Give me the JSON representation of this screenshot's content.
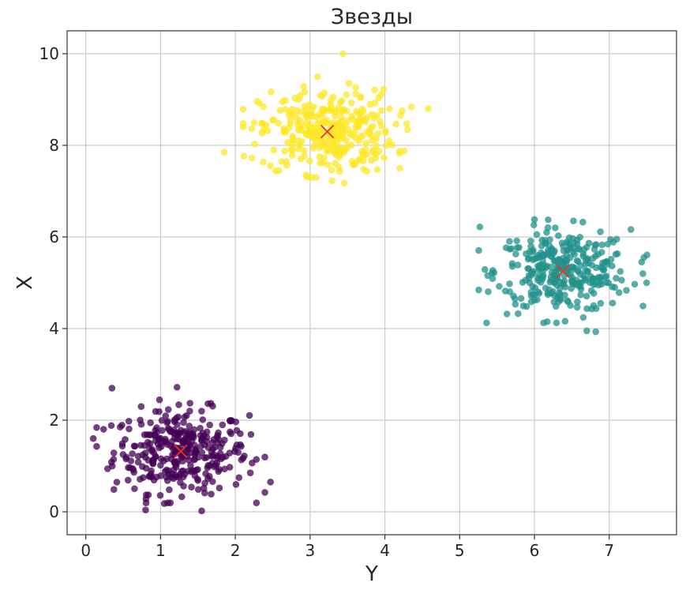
{
  "chart_data": {
    "type": "scatter",
    "title": "Звезды",
    "xlabel": "Y",
    "ylabel": "X",
    "xlim": [
      -0.25,
      7.9
    ],
    "ylim": [
      -0.5,
      10.5
    ],
    "xticks": [
      0,
      1,
      2,
      3,
      4,
      5,
      6,
      7
    ],
    "yticks": [
      0,
      2,
      4,
      6,
      8,
      10
    ],
    "grid": true,
    "legend": "none",
    "colors": {
      "cluster_purple": "#440154",
      "cluster_teal": "#21918c",
      "cluster_yellow": "#fde725",
      "centroid": "#e8312a",
      "grid": "#cccccc",
      "axis": "#333333"
    },
    "clusters": [
      {
        "color_key": "cluster_purple",
        "center": [
          1.27,
          1.32
        ],
        "spread": [
          0.45,
          0.45
        ],
        "n": 330,
        "outliers": [
          [
            0.35,
            2.7
          ],
          [
            1.22,
            2.72
          ],
          [
            2.47,
            0.65
          ],
          [
            1.55,
            0.02
          ],
          [
            0.8,
            0.04
          ],
          [
            1.05,
            0.18
          ],
          [
            0.1,
            1.6
          ],
          [
            2.2,
            0.85
          ]
        ]
      },
      {
        "color_key": "cluster_teal",
        "center": [
          6.38,
          5.25
        ],
        "spread": [
          0.45,
          0.45
        ],
        "n": 330,
        "outliers": [
          [
            5.27,
            6.22
          ],
          [
            7.5,
            5.0
          ],
          [
            6.7,
            3.95
          ],
          [
            6.82,
            3.93
          ],
          [
            6.17,
            4.15
          ],
          [
            7.45,
            5.2
          ],
          [
            6.0,
            6.38
          ]
        ]
      },
      {
        "color_key": "cluster_yellow",
        "center": [
          3.23,
          8.3
        ],
        "spread": [
          0.45,
          0.45
        ],
        "n": 330,
        "outliers": [
          [
            3.44,
            10.0
          ],
          [
            1.85,
            7.85
          ],
          [
            4.58,
            8.8
          ],
          [
            3.1,
            9.5
          ],
          [
            4.2,
            7.5
          ],
          [
            3.08,
            7.3
          ]
        ]
      }
    ],
    "centroids": [
      {
        "x": 1.27,
        "y": 1.32
      },
      {
        "x": 6.38,
        "y": 5.25
      },
      {
        "x": 3.23,
        "y": 8.3
      }
    ]
  }
}
